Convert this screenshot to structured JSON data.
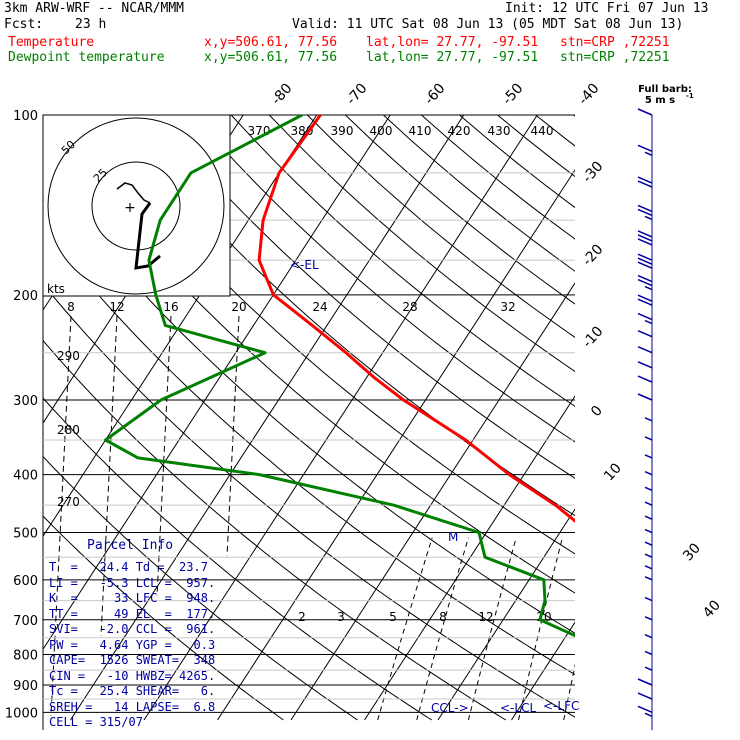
{
  "header": {
    "model": "3km ARW-WRF -- NCAR/MMM",
    "init": "Init: 12 UTC Fri 07 Jun 13",
    "fcst_label": "Fcst:",
    "fcst_value": "23 h",
    "valid": "Valid: 11 UTC Sat 08 Jun 13 (05 MDT Sat 08 Jun 13)",
    "temp_label": "Temperature",
    "dewp_label": "Dewpoint temperature",
    "xy": "x,y=506.61, 77.56",
    "latlon": "lat,lon= 27.77, -97.51",
    "stn": "stn=CRP ,72251",
    "temp_color": "#ff0000",
    "dewp_color": "#008000",
    "line_color": "#000000",
    "parcel_color": "#0000a0"
  },
  "barb_title": {
    "line1": "Full barb:",
    "line2": "5 m s",
    "exp": "-1"
  },
  "parcel": {
    "title": "Parcel Info",
    "rows": [
      "T  =   24.4 Td =  23.7",
      "LI =   -5.3 LCL =  957.",
      "K  =     33 LFC =  948.",
      "TT =     49 EL  =  177.",
      "SVI=   -2.0 CCL =  961.",
      "PW =   4.64 YGP =   0.3",
      "CAPE=  1526 SWEAT=  348",
      "CIN =   -10 HWBZ= 4265.",
      "Tc =   25.4 SHEAR=   6.",
      "SREH =   14 LAPSE=  6.8",
      "CELL = 315/07"
    ]
  },
  "chart_data": {
    "type": "line",
    "title": "",
    "xlabel": "",
    "ylabel": "",
    "pressure_ticks": [
      "100",
      "200",
      "300",
      "400",
      "500",
      "600",
      "700",
      "800",
      "900",
      "1000"
    ],
    "isotherm_labels": [
      "-80",
      "-70",
      "-60",
      "-50",
      "-40",
      "-30",
      "-20",
      "-10",
      "0",
      "10",
      "30",
      "40"
    ],
    "theta_labels": [
      "370",
      "380",
      "390",
      "400",
      "410",
      "420",
      "430",
      "440"
    ],
    "theta_left_labels": [
      "290",
      "280",
      "270"
    ],
    "mixing_ratio_labels": [
      "2",
      "3",
      "5",
      "8",
      "12",
      "20"
    ],
    "hodo_speed_labels": [
      "8",
      "12",
      "16",
      "20",
      "24",
      "28",
      "32"
    ],
    "hodo_units": "kts",
    "hodo_ring_labels": [
      "25",
      "50"
    ],
    "annotations": {
      "el": "<-EL",
      "ccl": "CCL->",
      "lcl": "<-LCL",
      "lfc": "<-LFC",
      "max_wind": "M"
    },
    "series": [
      {
        "name": "Temperature",
        "pressure": [
          100,
          125,
          150,
          175,
          200,
          225,
          250,
          275,
          300,
          350,
          400,
          450,
          500,
          550,
          600,
          650,
          700,
          750,
          800,
          850,
          900,
          925,
          950,
          975,
          1000
        ],
        "values": [
          -69.5,
          -70,
          -68,
          -65,
          -60,
          -52,
          -45,
          -39,
          -33,
          -21,
          -12,
          -3,
          4,
          9,
          12.5,
          15,
          17.5,
          19,
          21.5,
          21.8,
          23,
          23.5,
          23.8,
          24.1,
          24.4
        ]
      },
      {
        "name": "Dewpoint temperature",
        "pressure": [
          100,
          125,
          150,
          175,
          200,
          225,
          250,
          300,
          350,
          375,
          400,
          450,
          500,
          550,
          600,
          650,
          700,
          750,
          800,
          850,
          900,
          925,
          950,
          975,
          1000
        ],
        "values": [
          -72,
          -82,
          -82,
          -80,
          -76,
          -72,
          -56,
          -66,
          -70,
          -64,
          -46,
          -25,
          -11,
          -8,
          2,
          4,
          5,
          12,
          15.5,
          19,
          21.7,
          22.2,
          22.8,
          23.3,
          23.7
        ]
      }
    ],
    "wind_barbs": {
      "pressure": [
        100,
        115,
        130,
        145,
        160,
        175,
        190,
        205,
        220,
        235,
        250,
        265,
        280,
        300,
        325,
        350,
        375,
        400,
        425,
        450,
        475,
        500,
        525,
        550,
        575,
        600,
        650,
        700,
        750,
        800,
        850,
        900,
        950,
        1000
      ],
      "speed_ms": [
        10,
        15,
        20,
        25,
        30,
        30,
        25,
        20,
        15,
        10,
        10,
        10,
        10,
        10,
        5,
        5,
        5,
        5,
        5,
        5,
        5,
        5,
        5,
        5,
        5,
        5,
        5,
        5,
        5,
        5,
        5,
        10,
        10,
        15
      ]
    }
  }
}
